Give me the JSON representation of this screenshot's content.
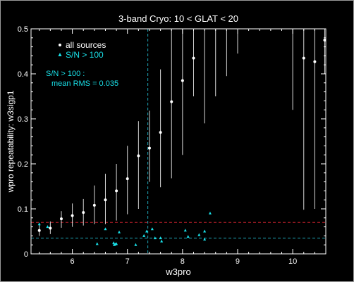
{
  "chart_data": {
    "type": "scatter",
    "title": "3-band Cryo:  10 < GLAT < 20",
    "xlabel": "w3pro",
    "ylabel": "wpro repeatability: w3sigp1",
    "xlim": [
      5.25,
      10.6
    ],
    "ylim": [
      0,
      0.5
    ],
    "x_ticks": [
      6,
      7,
      8,
      9,
      10
    ],
    "y_ticks": [
      0,
      0.1,
      0.2,
      0.3,
      0.4,
      0.5
    ],
    "x_tick_labels": [
      "6",
      "7",
      "8",
      "9",
      "10"
    ],
    "y_tick_labels": [
      "0",
      "0.1",
      "0.2",
      "0.3",
      "0.4",
      "0.5"
    ],
    "grid": false,
    "legend": {
      "placement": "top-left",
      "entries": [
        {
          "label": "all sources",
          "marker": "dot",
          "color": "#ffffff"
        },
        {
          "label": "S/N > 100",
          "marker": "triangle",
          "color": "#19e0e8"
        }
      ]
    },
    "annotation": {
      "line1": "S/N > 100 :",
      "line2": "mean RMS =  0.035",
      "color": "#19e0e8"
    },
    "reference_lines": {
      "red_horizontal_y": 0.07,
      "cyan_horizontal_y": 0.035,
      "cyan_vertical_x": 7.37,
      "red_color": "#c0202a",
      "cyan_color": "#1fa6b8"
    },
    "all_sources": [
      {
        "x": 5.4,
        "y": 0.052,
        "low": 0.04,
        "high": 0.066
      },
      {
        "x": 5.6,
        "y": 0.057,
        "low": 0.044,
        "high": 0.072
      },
      {
        "x": 5.8,
        "y": 0.078,
        "low": 0.058,
        "high": 0.095
      },
      {
        "x": 6.0,
        "y": 0.085,
        "low": 0.06,
        "high": 0.112
      },
      {
        "x": 6.2,
        "y": 0.092,
        "low": 0.063,
        "high": 0.122
      },
      {
        "x": 6.4,
        "y": 0.108,
        "low": 0.066,
        "high": 0.152
      },
      {
        "x": 6.6,
        "y": 0.12,
        "low": 0.066,
        "high": 0.178
      },
      {
        "x": 6.8,
        "y": 0.14,
        "low": 0.074,
        "high": 0.2
      },
      {
        "x": 7.0,
        "y": 0.167,
        "low": 0.088,
        "high": 0.24
      },
      {
        "x": 7.2,
        "y": 0.218,
        "low": 0.1,
        "high": 0.295
      },
      {
        "x": 7.4,
        "y": 0.235,
        "low": 0.16,
        "high": 0.318
      },
      {
        "x": 7.6,
        "y": 0.27,
        "low": 0.148,
        "high": 0.41
      },
      {
        "x": 7.8,
        "y": 0.338,
        "low": 0.168,
        "high": 0.5
      },
      {
        "x": 8.0,
        "y": 0.385,
        "low": 0.22,
        "high": 0.5
      },
      {
        "x": 8.2,
        "y": 0.435,
        "low": 0.35,
        "high": 0.5
      },
      {
        "x": 8.4,
        "y": 0.5,
        "low": 0.29,
        "high": 0.5
      },
      {
        "x": 8.6,
        "y": 0.5,
        "low": 0.35,
        "high": 0.5
      },
      {
        "x": 8.8,
        "y": 0.5,
        "low": 0.395,
        "high": 0.5
      },
      {
        "x": 9.0,
        "y": 0.5,
        "low": 0.445,
        "high": 0.5
      },
      {
        "x": 10.0,
        "y": 0.5,
        "low": 0.32,
        "high": 0.5
      },
      {
        "x": 10.2,
        "y": 0.435,
        "low": 0.098,
        "high": 0.5
      },
      {
        "x": 10.4,
        "y": 0.427,
        "low": 0.1,
        "high": 0.5
      },
      {
        "x": 10.58,
        "y": 0.475,
        "low": 0.4,
        "high": 0.5
      }
    ],
    "high_snr_sources": [
      {
        "x": 5.4,
        "y": 0.066
      },
      {
        "x": 5.55,
        "y": 0.06
      },
      {
        "x": 6.45,
        "y": 0.022
      },
      {
        "x": 6.6,
        "y": 0.055
      },
      {
        "x": 6.75,
        "y": 0.024
      },
      {
        "x": 6.76,
        "y": 0.02
      },
      {
        "x": 6.78,
        "y": 0.021
      },
      {
        "x": 6.8,
        "y": 0.022
      },
      {
        "x": 6.85,
        "y": 0.048
      },
      {
        "x": 7.15,
        "y": 0.02
      },
      {
        "x": 7.3,
        "y": 0.04
      },
      {
        "x": 7.35,
        "y": 0.05
      },
      {
        "x": 7.45,
        "y": 0.055
      },
      {
        "x": 7.5,
        "y": 0.035
      },
      {
        "x": 7.6,
        "y": 0.035
      },
      {
        "x": 7.62,
        "y": 0.028
      },
      {
        "x": 8.05,
        "y": 0.052
      },
      {
        "x": 8.1,
        "y": 0.038
      },
      {
        "x": 8.3,
        "y": 0.042
      },
      {
        "x": 8.4,
        "y": 0.032
      },
      {
        "x": 8.4,
        "y": 0.05
      },
      {
        "x": 8.5,
        "y": 0.09
      }
    ]
  }
}
